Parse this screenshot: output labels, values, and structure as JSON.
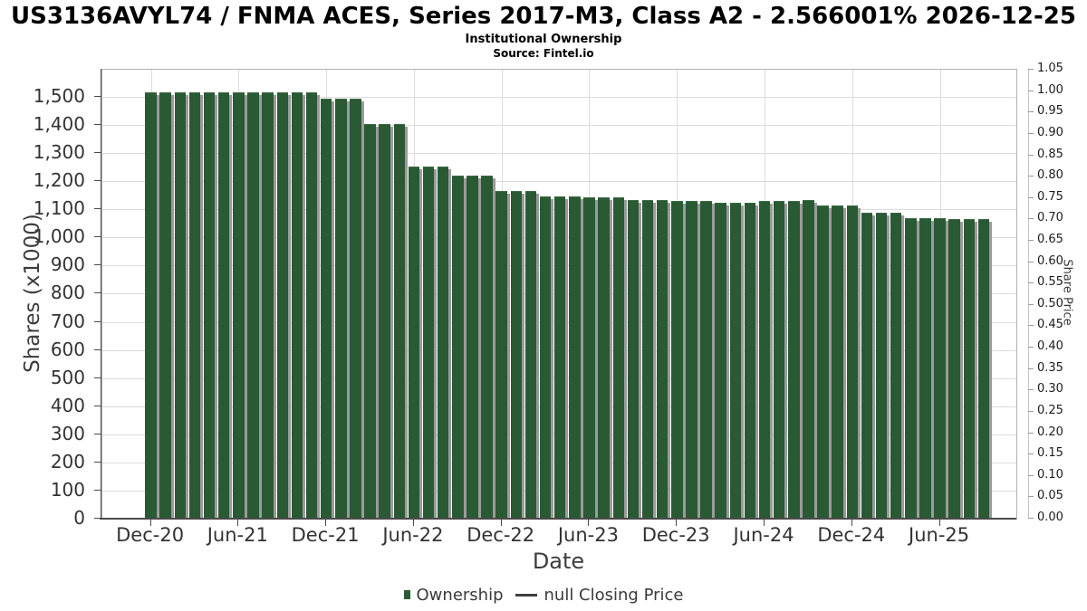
{
  "header": {
    "title": "US3136AVYL74 / FNMA ACES, Series 2017-M3, Class A2 - 2.566001% 2026-12-25",
    "subtitle": "Institutional Ownership",
    "source": "Source: Fintel.io"
  },
  "chart_data": {
    "type": "bar",
    "title": "Institutional Ownership",
    "xlabel": "Date",
    "ylabel_left": "Shares (x1000)",
    "ylabel_right": "Share Price",
    "grid": true,
    "legend_position": "bottom",
    "bar_color": "#2a5a34",
    "bar_shadow_color": "#9b9b9b",
    "categories": [
      "Dec-20",
      "Jan-21",
      "Feb-21",
      "Mar-21",
      "Apr-21",
      "May-21",
      "Jun-21",
      "Jul-21",
      "Aug-21",
      "Sep-21",
      "Oct-21",
      "Nov-21",
      "Dec-21",
      "Jan-22",
      "Feb-22",
      "Mar-22",
      "Apr-22",
      "May-22",
      "Jun-22",
      "Jul-22",
      "Aug-22",
      "Sep-22",
      "Oct-22",
      "Nov-22",
      "Dec-22",
      "Jan-23",
      "Feb-23",
      "Mar-23",
      "Apr-23",
      "May-23",
      "Jun-23",
      "Jul-23",
      "Aug-23",
      "Sep-23",
      "Oct-23",
      "Nov-23",
      "Dec-23",
      "Jan-24",
      "Feb-24",
      "Mar-24",
      "Apr-24",
      "May-24",
      "Jun-24",
      "Jul-24",
      "Aug-24",
      "Sep-24",
      "Oct-24",
      "Nov-24",
      "Dec-24",
      "Jan-25",
      "Feb-25",
      "Mar-25",
      "Apr-25",
      "May-25",
      "Jun-25",
      "Jul-25",
      "Aug-25",
      "Sep-25"
    ],
    "values": [
      1515,
      1515,
      1515,
      1515,
      1515,
      1515,
      1515,
      1515,
      1515,
      1515,
      1515,
      1515,
      1494,
      1494,
      1494,
      1403,
      1403,
      1403,
      1253,
      1253,
      1253,
      1220,
      1220,
      1220,
      1165,
      1165,
      1165,
      1147,
      1147,
      1147,
      1141,
      1141,
      1141,
      1133,
      1133,
      1133,
      1129,
      1129,
      1129,
      1124,
      1124,
      1124,
      1131,
      1131,
      1131,
      1133,
      1112,
      1112,
      1112,
      1089,
      1089,
      1089,
      1068,
      1068,
      1068,
      1065,
      1065,
      1065
    ],
    "x_ticks": [
      "Dec-20",
      "Jun-21",
      "Dec-21",
      "Jun-22",
      "Dec-22",
      "Jun-23",
      "Dec-23",
      "Jun-24",
      "Dec-24",
      "Jun-25"
    ],
    "y_left": {
      "min": 0,
      "max": 1596,
      "tick_step": 100,
      "tick_end": 1500
    },
    "y_right": {
      "min": 0,
      "max": 1.05,
      "tick_step": 0.05
    }
  },
  "legend": {
    "items": [
      {
        "label": "Ownership",
        "swatch": "square"
      },
      {
        "label": "null Closing Price",
        "swatch": "line"
      }
    ]
  }
}
